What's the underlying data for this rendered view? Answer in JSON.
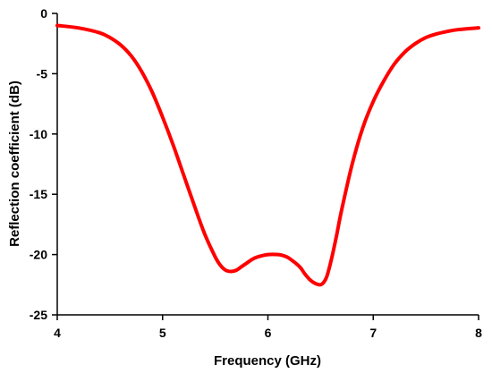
{
  "chart_data": {
    "type": "line",
    "title": "",
    "xlabel": "Frequency (GHz)",
    "ylabel": "Reflection coefficient (dB)",
    "xlim": [
      4,
      8
    ],
    "ylim": [
      -25,
      0
    ],
    "xticks": [
      4,
      5,
      6,
      7,
      8
    ],
    "yticks": [
      0,
      -5,
      -10,
      -15,
      -20,
      -25
    ],
    "xtick_labels": [
      "4",
      "5",
      "6",
      "7",
      "8"
    ],
    "ytick_labels": [
      "0",
      "-5",
      "-10",
      "-15",
      "-20",
      "-25"
    ],
    "grid": false,
    "legend": "none",
    "series": [
      {
        "color": "#ff0000",
        "x": [
          4.0,
          4.2,
          4.4,
          4.5,
          4.6,
          4.7,
          4.8,
          4.9,
          5.0,
          5.1,
          5.2,
          5.3,
          5.4,
          5.5,
          5.55,
          5.6,
          5.65,
          5.7,
          5.75,
          5.8,
          5.85,
          5.9,
          6.0,
          6.1,
          6.15,
          6.2,
          6.3,
          6.35,
          6.4,
          6.45,
          6.5,
          6.53,
          6.56,
          6.6,
          6.65,
          6.7,
          6.8,
          6.9,
          7.0,
          7.1,
          7.2,
          7.3,
          7.4,
          7.5,
          7.6,
          7.7,
          7.8,
          8.0
        ],
        "y": [
          -1.0,
          -1.2,
          -1.6,
          -2.0,
          -2.6,
          -3.5,
          -4.8,
          -6.5,
          -8.6,
          -10.9,
          -13.4,
          -15.9,
          -18.3,
          -20.2,
          -20.9,
          -21.3,
          -21.4,
          -21.3,
          -21.0,
          -20.7,
          -20.4,
          -20.2,
          -20.0,
          -20.0,
          -20.1,
          -20.3,
          -21.0,
          -21.6,
          -22.1,
          -22.4,
          -22.5,
          -22.3,
          -21.8,
          -20.5,
          -18.5,
          -16.3,
          -12.5,
          -9.5,
          -7.3,
          -5.6,
          -4.2,
          -3.2,
          -2.5,
          -2.0,
          -1.7,
          -1.5,
          -1.35,
          -1.2
        ]
      }
    ]
  }
}
